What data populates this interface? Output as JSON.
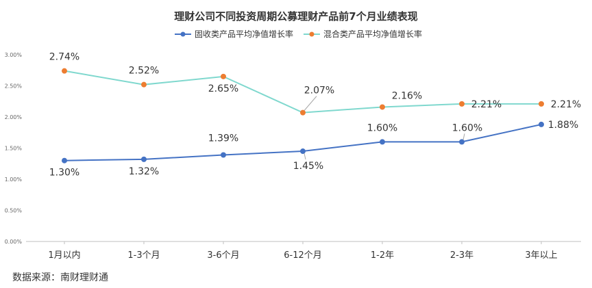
{
  "chart_data": {
    "type": "line",
    "title": "理财公司不同投资周期公募理财产品前7个月业绩表现",
    "categories": [
      "1月以内",
      "1-3个月",
      "3-6个月",
      "6-12个月",
      "1-2年",
      "2-3年",
      "3年以上"
    ],
    "series": [
      {
        "name": "固收类产品平均净值增长率",
        "values": [
          1.3,
          1.32,
          1.39,
          1.45,
          1.6,
          1.6,
          1.88
        ],
        "labels": [
          "1.30%",
          "1.32%",
          "1.39%",
          "1.45%",
          "1.60%",
          "1.60%",
          "1.88%"
        ],
        "line_color": "#4472C4",
        "marker_color": "#4472C4"
      },
      {
        "name": "混合类产品平均净值增长率",
        "values": [
          2.74,
          2.52,
          2.65,
          2.07,
          2.16,
          2.21,
          2.21
        ],
        "labels": [
          "2.74%",
          "2.52%",
          "2.65%",
          "2.07%",
          "2.16%",
          "2.21%",
          "2.21%"
        ],
        "line_color": "#7FD8CE",
        "marker_color": "#ED7D31"
      }
    ],
    "ylim": [
      0,
      3.0
    ],
    "yticks": [
      "0.00%",
      "0.50%",
      "1.00%",
      "1.50%",
      "2.00%",
      "2.50%",
      "3.00%"
    ],
    "grid": false,
    "legend": "top-center"
  },
  "source": "数据来源：南财理财通"
}
